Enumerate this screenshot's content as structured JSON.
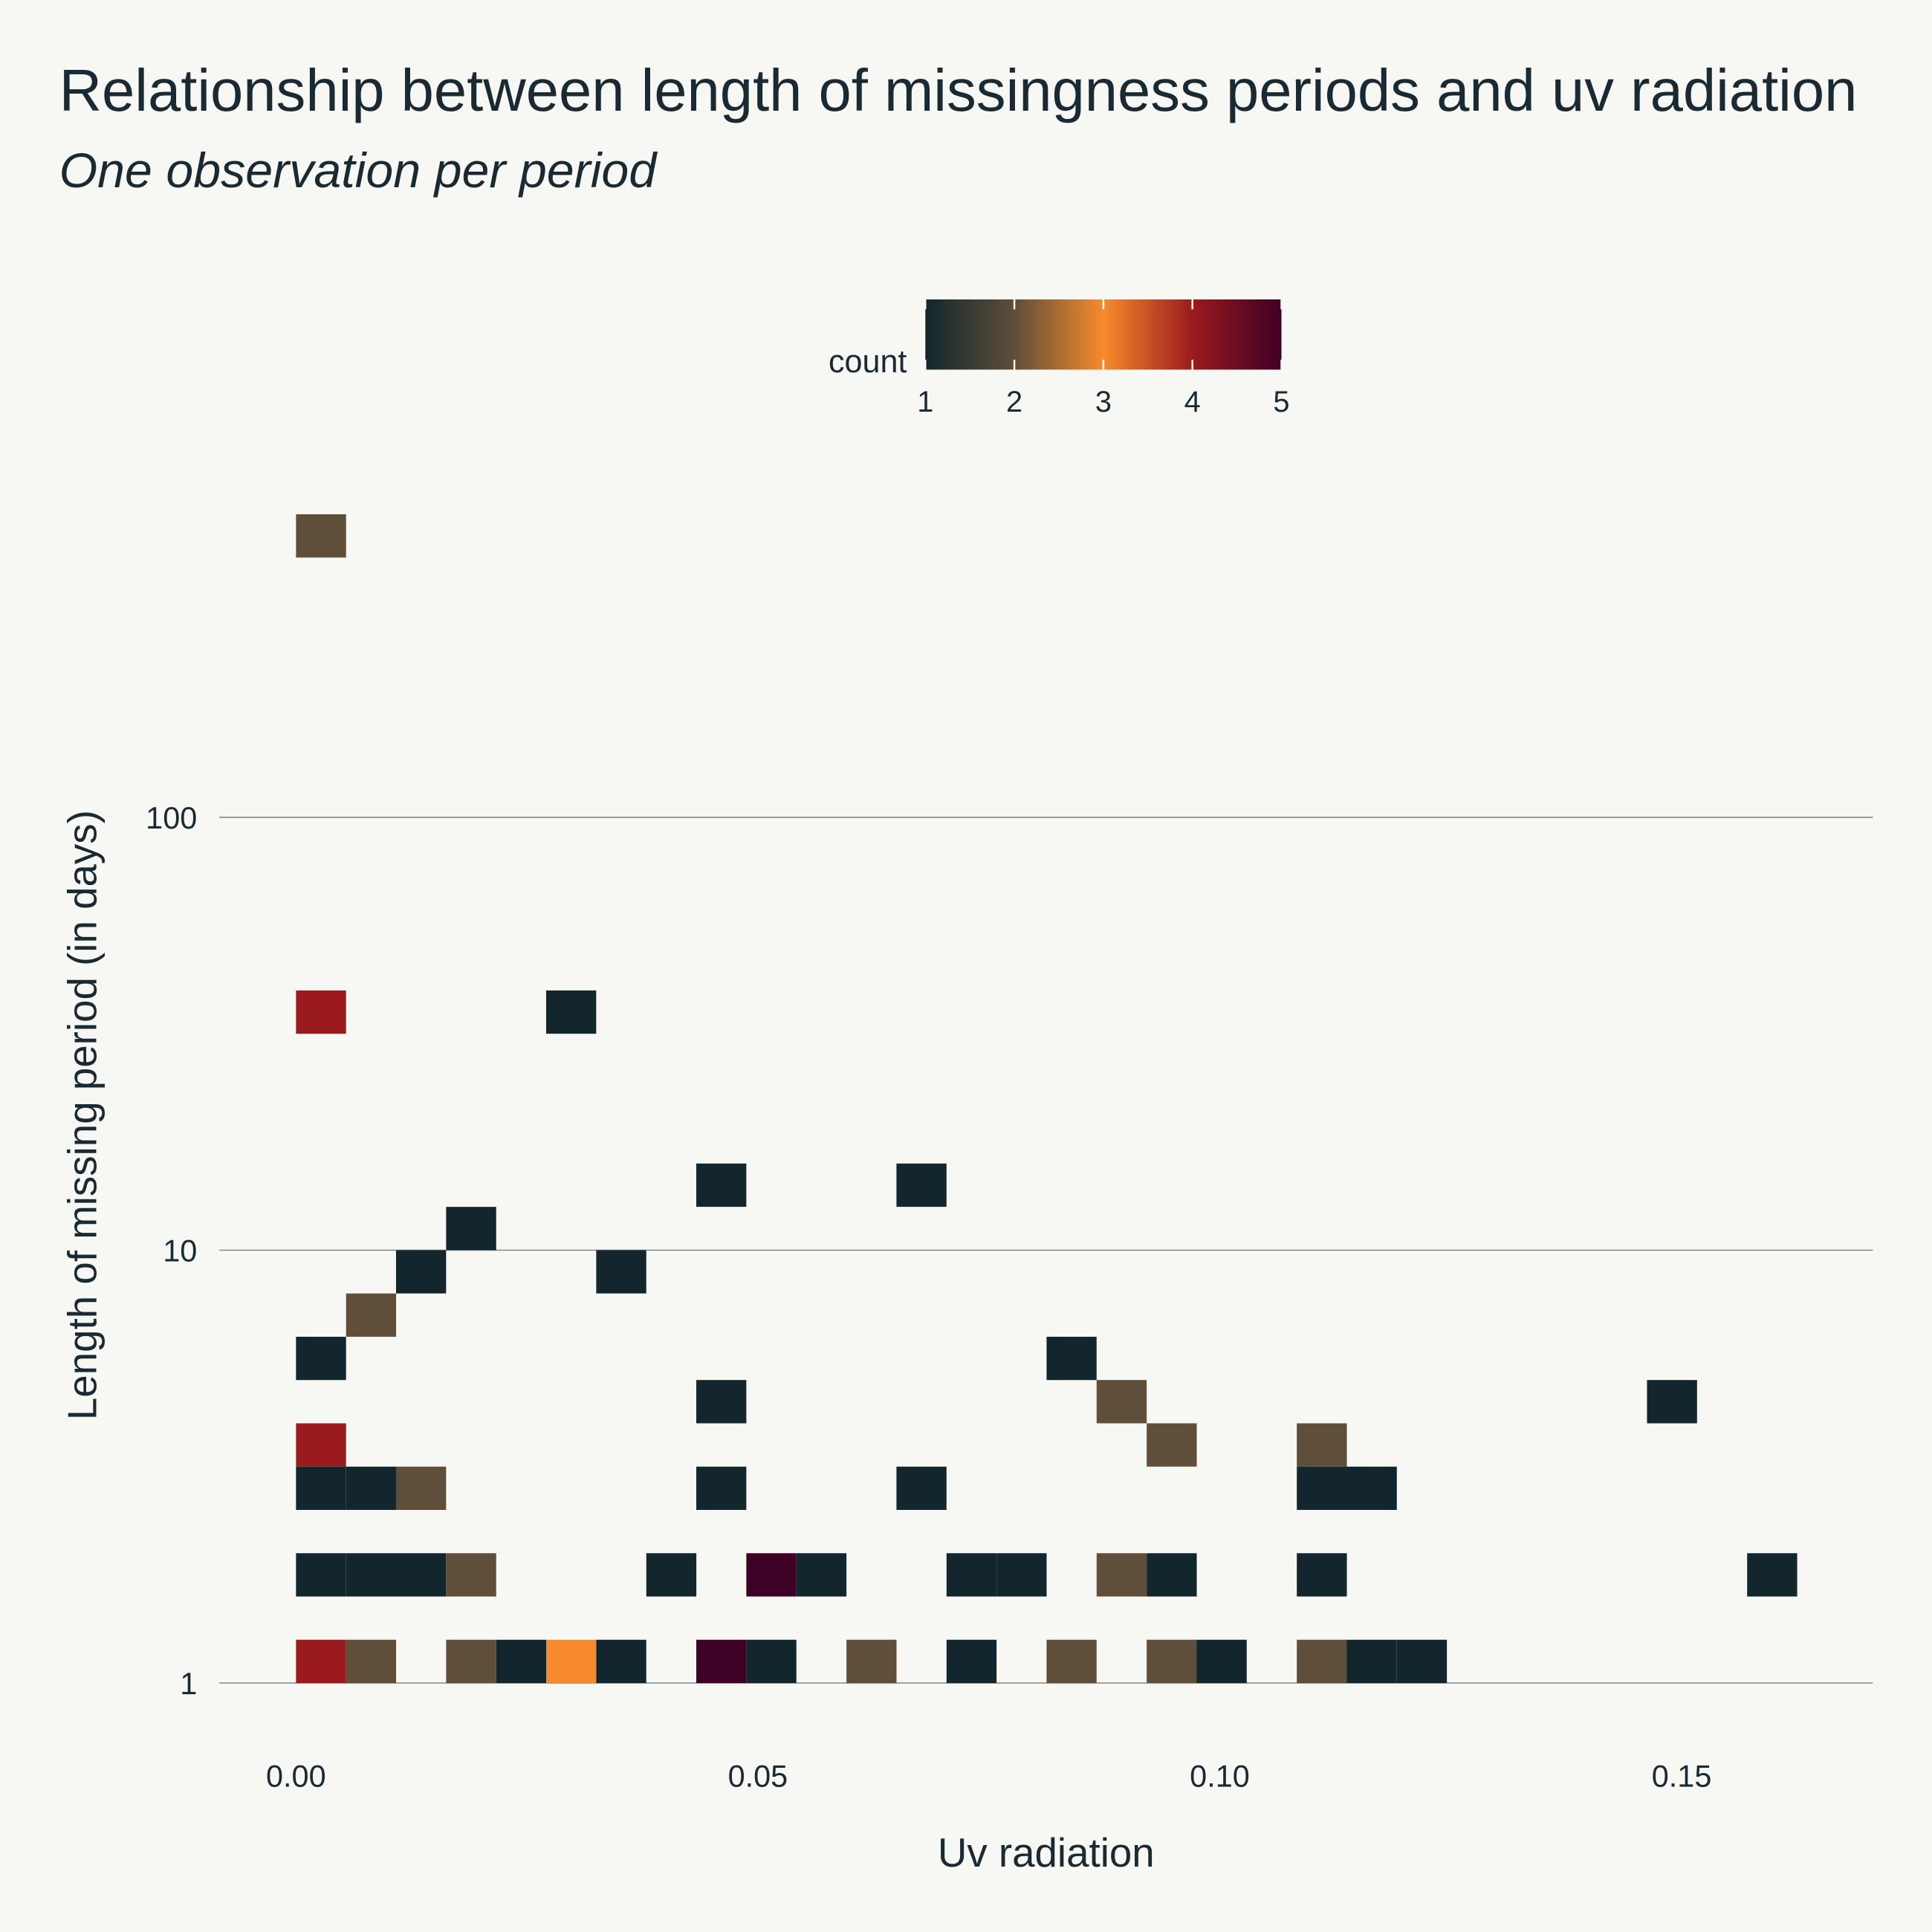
{
  "chart_data": {
    "type": "heatmap",
    "title": "Relationship between length of missingness periods and uv radiation",
    "subtitle": "One observation per period",
    "x_label": "Uv radiation",
    "y_label": "Length of missing period (in days)",
    "colorbar_title": "count",
    "y_log": true,
    "x_bin_width": 0.005417,
    "y_bin_width_log10": 0.1,
    "xlim": [
      -0.0083,
      0.1707
    ],
    "ylim": [
      0.8,
      540
    ],
    "xticks": [
      {
        "value": 0,
        "label": "0.00"
      },
      {
        "value": 0.05,
        "label": "0.05"
      },
      {
        "value": 0.1,
        "label": "0.10"
      },
      {
        "value": 0.15,
        "label": "0.15"
      }
    ],
    "yticks": [
      1,
      10,
      100
    ],
    "grid": true,
    "clim": [
      1,
      5
    ],
    "cticks": [
      1,
      2,
      3,
      4,
      5
    ],
    "colorscale": [
      [
        1,
        "#13262e"
      ],
      [
        2,
        "#5e4e3a"
      ],
      [
        3,
        "#f78a2d"
      ],
      [
        4,
        "#9b1a1e"
      ],
      [
        5,
        "#3f0025"
      ]
    ],
    "x": [
      0.00271,
      0.00271,
      0.02979,
      0.04604,
      0.06771,
      0.01896,
      0.01354,
      0.03521,
      0.00813,
      0.00271,
      0.08396,
      0.04604,
      0.08938,
      0.14896,
      0.00271,
      0.0948,
      0.11105,
      0.00271,
      0.00813,
      0.01354,
      0.04604,
      0.06771,
      0.11105,
      0.11646,
      0.00271,
      0.00813,
      0.01354,
      0.01896,
      0.04063,
      0.05146,
      0.05688,
      0.07313,
      0.07855,
      0.08938,
      0.0948,
      0.11105,
      0.1598,
      0.00271,
      0.00813,
      0.01896,
      0.02438,
      0.02979,
      0.03521,
      0.04604,
      0.05146,
      0.0623,
      0.07313,
      0.08396,
      0.0948,
      0.10021,
      0.11105,
      0.11646,
      0.12188
    ],
    "y": [
      446.7,
      35.48,
      35.48,
      14.13,
      14.13,
      11.22,
      8.913,
      8.913,
      7.079,
      5.623,
      5.623,
      4.467,
      4.467,
      4.467,
      3.548,
      3.548,
      3.548,
      2.818,
      2.818,
      2.818,
      2.818,
      2.818,
      2.818,
      2.818,
      1.778,
      1.778,
      1.778,
      1.778,
      1.778,
      1.778,
      1.778,
      1.778,
      1.778,
      1.778,
      1.778,
      1.778,
      1.778,
      1.122,
      1.122,
      1.122,
      1.122,
      1.122,
      1.122,
      1.122,
      1.122,
      1.122,
      1.122,
      1.122,
      1.122,
      1.122,
      1.122,
      1.122,
      1.122
    ],
    "values": [
      2,
      4,
      1,
      1,
      1,
      1,
      1,
      1,
      2,
      1,
      1,
      1,
      2,
      1,
      4,
      2,
      2,
      1,
      1,
      2,
      1,
      1,
      1,
      1,
      1,
      1,
      1,
      2,
      1,
      5,
      1,
      1,
      1,
      2,
      1,
      1,
      1,
      4,
      2,
      2,
      1,
      3,
      1,
      5,
      1,
      2,
      1,
      2,
      2,
      1,
      2,
      1,
      1
    ]
  }
}
